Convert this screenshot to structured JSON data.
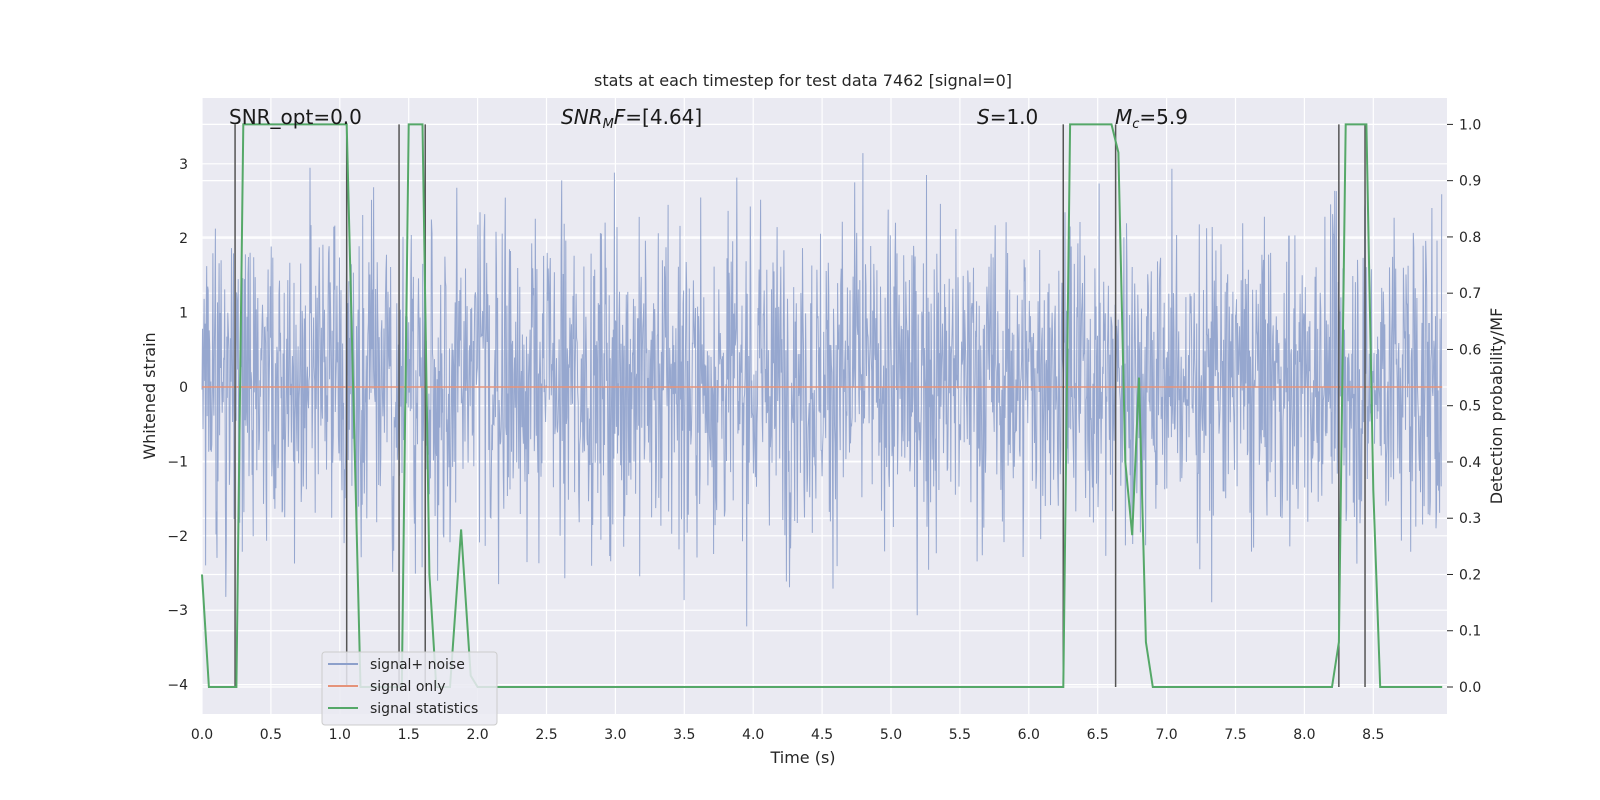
{
  "chart_data": {
    "type": "line",
    "title": "stats at each timestep for test data 7462 [signal=0]",
    "xlabel": "Time (s)",
    "ylabel_left": "Whitened strain",
    "ylabel_right": "Detection probability/MF",
    "xlim": [
      0.0,
      9.0
    ],
    "ylim_left": [
      -4.35,
      3.9
    ],
    "ylim_right": [
      -0.05,
      1.05
    ],
    "xticks": [
      0.0,
      0.5,
      1.0,
      1.5,
      2.0,
      2.5,
      3.0,
      3.5,
      4.0,
      4.5,
      5.0,
      5.5,
      6.0,
      6.5,
      7.0,
      7.5,
      8.0,
      8.5
    ],
    "xtick_labels": [
      "0.0",
      "0.5",
      "1.0",
      "1.5",
      "2.0",
      "2.5",
      "3.0",
      "3.5",
      "4.0",
      "4.5",
      "5.0",
      "5.5",
      "6.0",
      "6.5",
      "7.0",
      "7.5",
      "8.0",
      "8.5"
    ],
    "yticks_left": [
      3,
      2,
      1,
      0,
      -1,
      -2,
      -3,
      -4
    ],
    "ytick_labels_left": [
      "3",
      "2",
      "1",
      "0",
      "−1",
      "−2",
      "−3",
      "−4"
    ],
    "yticks_right": [
      1.0,
      0.9,
      0.8,
      0.7,
      0.6,
      0.5,
      0.4,
      0.3,
      0.2,
      0.1,
      0.0
    ],
    "ytick_labels_right": [
      "1.0",
      "0.9",
      "0.8",
      "0.7",
      "0.6",
      "0.5",
      "0.4",
      "0.3",
      "0.2",
      "0.1",
      "0.0"
    ],
    "annotations": {
      "snr_opt": "SNR_opt=0.0",
      "snr_mf": "SNR_MF=[4.64]",
      "s": "S=1.0",
      "mc": "M_c=5.9"
    },
    "legend": {
      "placement": "lower-left",
      "entries": [
        "signal+ noise",
        "signal only",
        "signal statistics"
      ]
    },
    "colors": {
      "noise": "#8da0cb",
      "signal": "#e5937a",
      "stats": "#55a868",
      "vlines": "#555555",
      "background": "#eaeaf2",
      "grid": "#ffffff"
    },
    "series": [
      {
        "name": "signal+ noise",
        "description_axis": "left",
        "noise_amplitude_band": [
          -1.8,
          2.0
        ],
        "approx_extremes": [
          -4.0,
          3.3
        ]
      },
      {
        "name": "signal only",
        "axis": "left",
        "x": [
          0.0,
          9.0
        ],
        "y": [
          0.0,
          0.0
        ]
      },
      {
        "name": "signal statistics",
        "axis": "right",
        "x": [
          0.0,
          0.05,
          0.2,
          0.25,
          0.3,
          1.05,
          1.1,
          1.15,
          1.4,
          1.45,
          1.5,
          1.6,
          1.65,
          1.7,
          1.8,
          1.88,
          1.95,
          2.0,
          6.2,
          6.25,
          6.3,
          6.6,
          6.65,
          6.7,
          6.75,
          6.8,
          6.85,
          6.9,
          6.95,
          7.0,
          8.2,
          8.25,
          8.3,
          8.45,
          8.5,
          8.55,
          9.0
        ],
        "y": [
          0.2,
          0.0,
          0.0,
          0.0,
          1.0,
          1.0,
          0.5,
          0.0,
          0.0,
          0.0,
          1.0,
          1.0,
          0.2,
          0.0,
          0.0,
          0.28,
          0.02,
          0.0,
          0.0,
          0.0,
          1.0,
          1.0,
          0.95,
          0.4,
          0.27,
          0.55,
          0.08,
          0.0,
          0.0,
          0.0,
          0.0,
          0.08,
          1.0,
          1.0,
          0.35,
          0.0,
          0.0
        ]
      }
    ],
    "vertical_lines_x": [
      0.24,
      1.05,
      1.43,
      1.62,
      6.25,
      6.63,
      8.25,
      8.44
    ]
  }
}
